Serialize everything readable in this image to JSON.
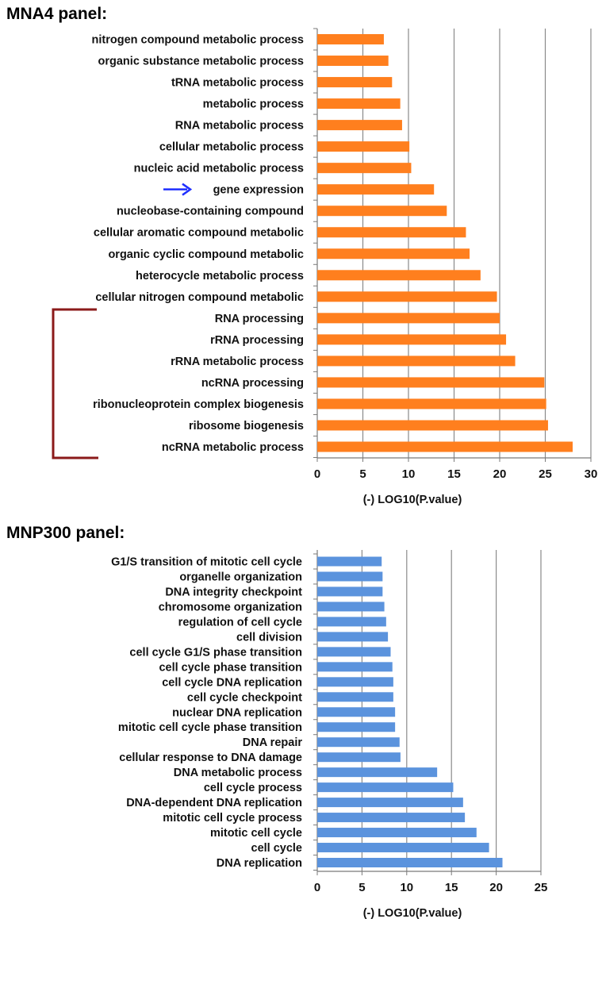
{
  "chart_data": [
    {
      "type": "bar",
      "orientation": "horizontal",
      "title": "MNA4 panel:",
      "xlabel": "(-) LOG10(P.value)",
      "xlim": [
        0,
        30
      ],
      "xticks": [
        "0",
        "5",
        "10",
        "15",
        "20",
        "25",
        "30"
      ],
      "grid": "vertical",
      "color": "#ff7f1e",
      "categories": [
        "nitrogen compound metabolic process",
        "organic substance metabolic process",
        "tRNA metabolic process",
        "metabolic process",
        "RNA metabolic process",
        "cellular metabolic process",
        "nucleic acid metabolic process",
        "gene expression",
        "nucleobase-containing compound",
        "cellular aromatic compound metabolic",
        "organic cyclic compound metabolic",
        "heterocycle metabolic process",
        "cellular nitrogen compound metabolic",
        "RNA processing",
        "rRNA processing",
        "rRNA metabolic process",
        "ncRNA processing",
        "ribonucleoprotein complex biogenesis",
        "ribosome biogenesis",
        "ncRNA metabolic process"
      ],
      "values": [
        7.3,
        7.8,
        8.2,
        9.1,
        9.3,
        10.1,
        10.3,
        12.8,
        14.2,
        16.3,
        16.7,
        17.9,
        19.7,
        20.0,
        20.7,
        21.7,
        24.9,
        25.1,
        25.3,
        28.0
      ],
      "annotations": [
        {
          "type": "arrow",
          "target": "gene expression",
          "color": "#1f2fff"
        },
        {
          "type": "bracket",
          "from": "RNA processing",
          "to": "ncRNA metabolic process",
          "color": "#8b1a1a"
        }
      ]
    },
    {
      "type": "bar",
      "orientation": "horizontal",
      "title": "MNP300 panel:",
      "xlabel": "(-) LOG10(P.value)",
      "xlim": [
        0,
        25
      ],
      "xticks": [
        "0",
        "5",
        "10",
        "15",
        "20",
        "25"
      ],
      "grid": "vertical",
      "color": "#5b93dd",
      "categories": [
        "G1/S transition of mitotic cell cycle",
        "organelle organization",
        "DNA integrity checkpoint",
        "chromosome organization",
        "regulation of cell cycle",
        "cell division",
        "cell cycle G1/S phase transition",
        "cell cycle phase transition",
        "cell cycle DNA replication",
        "cell cycle checkpoint",
        "nuclear DNA replication",
        "mitotic cell cycle phase transition",
        "DNA repair",
        "cellular response to DNA damage",
        "DNA metabolic process",
        "cell cycle process",
        "DNA-dependent DNA replication",
        "mitotic cell cycle process",
        "mitotic cell cycle",
        "cell cycle",
        "DNA replication"
      ],
      "values": [
        7.2,
        7.3,
        7.3,
        7.5,
        7.7,
        7.9,
        8.2,
        8.4,
        8.5,
        8.5,
        8.7,
        8.7,
        9.2,
        9.3,
        13.4,
        15.2,
        16.3,
        16.5,
        17.8,
        19.2,
        20.7
      ]
    }
  ]
}
